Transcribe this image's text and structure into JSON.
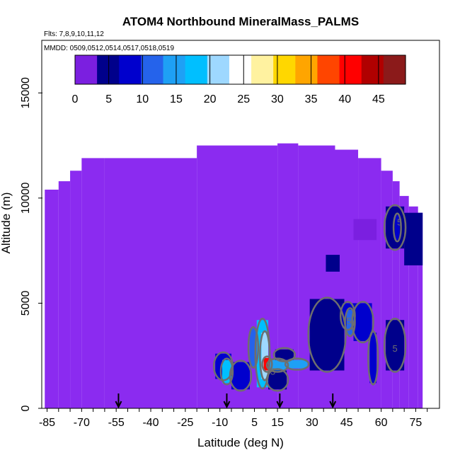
{
  "chart_data": {
    "type": "heatmap",
    "title": "ATOM4 Northbound MineralMass_PALMS",
    "subtitle_flights": "Flts: 7,8,9,10,11,12",
    "subtitle_dates": "MMDD: 0509,0512,0514,0517,0518,0519",
    "xlabel": "Latitude (deg N)",
    "ylabel": "Altitude (m)",
    "xlim": [
      -87,
      85
    ],
    "ylim": [
      0,
      17500
    ],
    "x_ticks": [
      -85,
      -70,
      -55,
      -40,
      -25,
      -10,
      5,
      15,
      30,
      45,
      60,
      75
    ],
    "x_ticks_labeled": [
      -85,
      -70,
      -55,
      -40,
      -25,
      -10,
      5,
      15,
      30,
      45,
      60,
      75
    ],
    "y_ticks": [
      0,
      5000,
      10000,
      15000
    ],
    "y_ticks_labeled": [
      0,
      5000,
      10000,
      15000
    ],
    "colorbar": {
      "range": [
        0,
        49
      ],
      "ticks": [
        0,
        5,
        10,
        15,
        20,
        25,
        30,
        35,
        40,
        45
      ],
      "colors": [
        "#7B1FE0",
        "#00008B",
        "#0000CD",
        "#2563EB",
        "#1EA0F5",
        "#00BFFF",
        "#9ED8FF",
        "#FFFFFF",
        "#FFF2A0",
        "#FFD700",
        "#FFA500",
        "#FF4500",
        "#FF0000",
        "#B00000",
        "#8B1A1A"
      ]
    },
    "background_value": 0,
    "background_color": "#8B2BF0",
    "coverage_profile": [
      {
        "lat_range": [
          -86,
          -80
        ],
        "alt_top": 10400
      },
      {
        "lat_range": [
          -80,
          -75
        ],
        "alt_top": 10800
      },
      {
        "lat_range": [
          -75,
          -70
        ],
        "alt_top": 11300
      },
      {
        "lat_range": [
          -70,
          -60
        ],
        "alt_top": 11900
      },
      {
        "lat_range": [
          -60,
          -20
        ],
        "alt_top": 11900
      },
      {
        "lat_range": [
          -20,
          15
        ],
        "alt_top": 12500
      },
      {
        "lat_range": [
          15,
          24
        ],
        "alt_top": 12600
      },
      {
        "lat_range": [
          24,
          40
        ],
        "alt_top": 12500
      },
      {
        "lat_range": [
          40,
          50
        ],
        "alt_top": 12300
      },
      {
        "lat_range": [
          50,
          60
        ],
        "alt_top": 11900
      },
      {
        "lat_range": [
          60,
          65
        ],
        "alt_top": 11300
      },
      {
        "lat_range": [
          65,
          68
        ],
        "alt_top": 10800
      },
      {
        "lat_range": [
          68,
          72
        ],
        "alt_top": 10100
      },
      {
        "lat_range": [
          72,
          76
        ],
        "alt_top": 9600
      },
      {
        "lat_range": [
          76,
          78
        ],
        "alt_top": 9300
      }
    ],
    "enhanced_cells": [
      {
        "lat_range": [
          -12,
          -5
        ],
        "alt_range": [
          1400,
          2600
        ],
        "value": 8
      },
      {
        "lat_range": [
          -9,
          -5
        ],
        "alt_range": [
          1200,
          2300
        ],
        "value": 17
      },
      {
        "lat_range": [
          -5,
          3
        ],
        "alt_range": [
          900,
          2200
        ],
        "value": 9
      },
      {
        "lat_range": [
          3,
          6
        ],
        "alt_range": [
          2000,
          3800
        ],
        "value": 12
      },
      {
        "lat_range": [
          6,
          11
        ],
        "alt_range": [
          1000,
          4200
        ],
        "value": 18
      },
      {
        "lat_range": [
          8,
          11
        ],
        "alt_range": [
          1400,
          3600
        ],
        "value": 22
      },
      {
        "lat_range": [
          9,
          12
        ],
        "alt_range": [
          1800,
          2400
        ],
        "value": 42
      },
      {
        "lat_range": [
          11,
          19
        ],
        "alt_range": [
          1800,
          2300
        ],
        "value": 14
      },
      {
        "lat_range": [
          11,
          19
        ],
        "alt_range": [
          900,
          1800
        ],
        "value": 6
      },
      {
        "lat_range": [
          19,
          28
        ],
        "alt_range": [
          1900,
          2300
        ],
        "value": 16
      },
      {
        "lat_range": [
          14,
          22
        ],
        "alt_range": [
          2300,
          2800
        ],
        "value": 6
      },
      {
        "lat_range": [
          29,
          44
        ],
        "alt_range": [
          1800,
          5200
        ],
        "value": 6
      },
      {
        "lat_range": [
          43,
          48
        ],
        "alt_range": [
          3800,
          5000
        ],
        "value": 9
      },
      {
        "lat_range": [
          45,
          48
        ],
        "alt_range": [
          3500,
          4700
        ],
        "value": 13
      },
      {
        "lat_range": [
          48,
          56
        ],
        "alt_range": [
          3200,
          5000
        ],
        "value": 7
      },
      {
        "lat_range": [
          55,
          58
        ],
        "alt_range": [
          1200,
          3600
        ],
        "value": 8
      },
      {
        "lat_range": [
          62,
          70
        ],
        "alt_range": [
          1800,
          4200
        ],
        "value": 6
      },
      {
        "lat_range": [
          62,
          70
        ],
        "alt_range": [
          7600,
          9600
        ],
        "value": 5
      },
      {
        "lat_range": [
          66,
          68
        ],
        "alt_range": [
          8000,
          9200
        ],
        "value": 8
      },
      {
        "lat_range": [
          70,
          78
        ],
        "alt_range": [
          6800,
          9300
        ],
        "value": 4
      },
      {
        "lat_range": [
          36,
          42
        ],
        "alt_range": [
          6500,
          7300
        ],
        "value": 4
      },
      {
        "lat_range": [
          48,
          58
        ],
        "alt_range": [
          8000,
          9000
        ],
        "value": 3
      }
    ],
    "contour_label": "5",
    "flight_arrows_lat": [
      -54,
      -7,
      16,
      39
    ]
  }
}
